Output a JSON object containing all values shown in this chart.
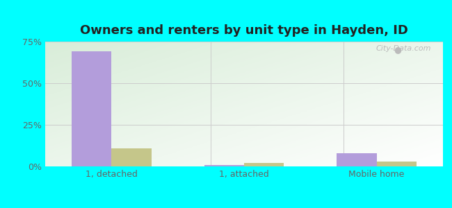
{
  "title": "Owners and renters by unit type in Hayden, ID",
  "categories": [
    "1, detached",
    "1, attached",
    "Mobile home"
  ],
  "owner_values": [
    69,
    1,
    8
  ],
  "renter_values": [
    11,
    2,
    3
  ],
  "owner_color": "#b39ddb",
  "renter_color": "#c5c68a",
  "ylim": [
    0,
    75
  ],
  "yticks": [
    0,
    25,
    50,
    75
  ],
  "yticklabels": [
    "0%",
    "25%",
    "50%",
    "75%"
  ],
  "outer_bg": "#00ffff",
  "title_fontsize": 13,
  "bar_width": 0.3
}
